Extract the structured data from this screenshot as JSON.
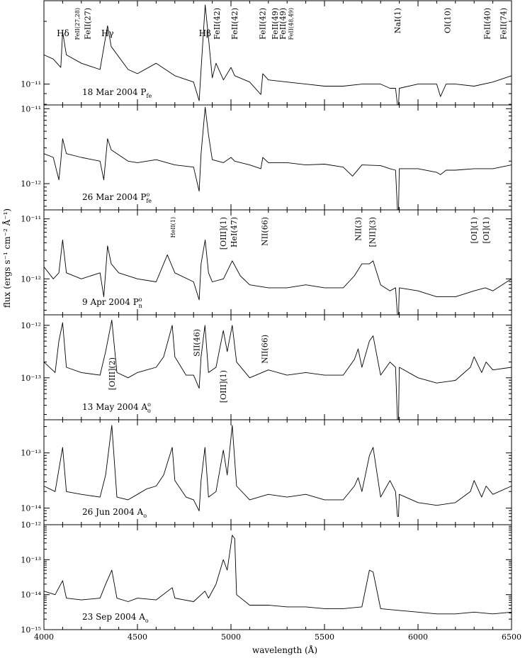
{
  "chart_data": {
    "type": "line",
    "xlabel": "wavelength (Å)",
    "ylabel": "flux (ergs s⁻¹ cm⁻² Å⁻¹)",
    "xlim": [
      4000,
      6500
    ],
    "x_ticks": [
      "4000",
      "4500",
      "5000",
      "5500",
      "6000",
      "6500"
    ],
    "log_y": true,
    "panels": [
      {
        "label": "18 Mar 2004 P",
        "label_sub": "fe",
        "label_sup": "",
        "ylim_log": [
          -11.1,
          -10.6
        ],
        "y_ticks": [
          {
            "v": -11,
            "t": "10⁻¹¹"
          }
        ],
        "series": [
          {
            "x": [
              4000,
              4050,
              4090,
              4100,
              4120,
              4200,
              4300,
              4340,
              4360,
              4450,
              4500,
              4600,
              4700,
              4800,
              4830,
              4840,
              4862,
              4880,
              4900,
              4920,
              4960,
              5000,
              5020,
              5100,
              5160,
              5170,
              5200,
              5300,
              5400,
              5500,
              5600,
              5700,
              5800,
              5850,
              5880,
              5890,
              5896,
              5900,
              6000,
              6100,
              6120,
              6150,
              6200,
              6300,
              6400,
              6500
            ],
            "y": [
              -10.86,
              -10.88,
              -10.92,
              -10.75,
              -10.86,
              -10.9,
              -10.93,
              -10.72,
              -10.82,
              -10.93,
              -10.95,
              -10.9,
              -10.96,
              -10.99,
              -11.08,
              -10.93,
              -10.62,
              -10.78,
              -10.97,
              -10.9,
              -10.98,
              -10.92,
              -10.96,
              -10.99,
              -11.05,
              -10.95,
              -10.98,
              -10.99,
              -11.0,
              -11.01,
              -11.01,
              -11.0,
              -11.0,
              -11.02,
              -11.02,
              -11.2,
              -11.2,
              -11.02,
              -11.0,
              -11.0,
              -11.06,
              -11.0,
              -11.0,
              -11.01,
              -10.99,
              -10.96
            ]
          }
        ],
        "annotations": [
          {
            "t": "Hδ",
            "x": 4102
          },
          {
            "t": "FeII(27,28)",
            "x": 4175
          },
          {
            "t": "FeII(27)",
            "x": 4233
          },
          {
            "t": "Hγ",
            "x": 4340
          },
          {
            "t": "Hβ",
            "x": 4861
          },
          {
            "t": "FeII(42)",
            "x": 4924
          },
          {
            "t": "FeII(42)",
            "x": 5018
          },
          {
            "t": "FeII(42)",
            "x": 5169
          },
          {
            "t": "FeII(49)",
            "x": 5235
          },
          {
            "t": "FeII(49)",
            "x": 5276
          },
          {
            "t": "FeII(48,49)",
            "x": 5316
          },
          {
            "t": "NaI(1)",
            "x": 5890
          },
          {
            "t": "OI(10)",
            "x": 6158
          },
          {
            "t": "FeII(40)",
            "x": 6370
          },
          {
            "t": "FeII(74)",
            "x": 6456
          }
        ]
      },
      {
        "label": "26 Mar 2004 P",
        "label_sub": "fe",
        "label_sup": "o",
        "ylim_log": [
          -12.35,
          -10.95
        ],
        "y_ticks": [
          {
            "v": -11,
            "t": "10⁻¹¹"
          },
          {
            "v": -12,
            "t": "10⁻¹²"
          }
        ],
        "series": [
          {
            "x": [
              4000,
              4050,
              4080,
              4090,
              4100,
              4120,
              4200,
              4300,
              4320,
              4340,
              4360,
              4450,
              4500,
              4600,
              4700,
              4800,
              4830,
              4840,
              4862,
              4880,
              4900,
              4960,
              5000,
              5020,
              5100,
              5160,
              5170,
              5200,
              5300,
              5400,
              5500,
              5600,
              5650,
              5700,
              5800,
              5850,
              5880,
              5890,
              5896,
              5900,
              6000,
              6100,
              6120,
              6150,
              6200,
              6300,
              6400,
              6500
            ],
            "y": [
              -11.6,
              -11.65,
              -11.95,
              -11.7,
              -11.4,
              -11.6,
              -11.65,
              -11.7,
              -11.95,
              -11.4,
              -11.55,
              -11.7,
              -11.72,
              -11.68,
              -11.75,
              -11.78,
              -12.1,
              -11.6,
              -10.98,
              -11.35,
              -11.68,
              -11.72,
              -11.65,
              -11.7,
              -11.75,
              -11.8,
              -11.65,
              -11.72,
              -11.72,
              -11.75,
              -11.74,
              -11.78,
              -11.9,
              -11.75,
              -11.76,
              -11.8,
              -11.82,
              -12.35,
              -12.35,
              -11.8,
              -11.8,
              -11.85,
              -11.88,
              -11.82,
              -11.82,
              -11.8,
              -11.8,
              -11.75
            ]
          }
        ],
        "annotations": []
      },
      {
        "label": "9 Apr 2004 P",
        "label_sub": "n",
        "label_sup": "o",
        "ylim_log": [
          -12.6,
          -10.85
        ],
        "y_ticks": [
          {
            "v": -11,
            "t": "10⁻¹¹"
          },
          {
            "v": -12,
            "t": "10⁻¹²"
          }
        ],
        "series": [
          {
            "x": [
              4000,
              4050,
              4080,
              4100,
              4120,
              4200,
              4300,
              4320,
              4340,
              4360,
              4400,
              4500,
              4600,
              4660,
              4700,
              4800,
              4830,
              4840,
              4862,
              4880,
              4900,
              4960,
              5007,
              5050,
              5100,
              5200,
              5300,
              5400,
              5500,
              5600,
              5660,
              5700,
              5740,
              5760,
              5800,
              5850,
              5880,
              5890,
              5896,
              5900,
              6000,
              6100,
              6200,
              6300,
              6360,
              6400,
              6500
            ],
            "y": [
              -11.8,
              -12.0,
              -11.9,
              -11.35,
              -11.9,
              -12.0,
              -11.9,
              -12.3,
              -11.45,
              -11.75,
              -11.9,
              -12.0,
              -12.05,
              -11.6,
              -11.9,
              -12.05,
              -12.35,
              -11.75,
              -11.35,
              -11.9,
              -12.05,
              -12.0,
              -11.7,
              -11.95,
              -12.1,
              -12.15,
              -12.15,
              -12.1,
              -12.15,
              -12.15,
              -11.95,
              -11.75,
              -11.75,
              -11.7,
              -12.1,
              -12.2,
              -12.15,
              -12.6,
              -12.6,
              -12.15,
              -12.2,
              -12.3,
              -12.3,
              -12.2,
              -12.15,
              -12.2,
              -12.0
            ]
          }
        ],
        "annotations": [
          {
            "t": "HeII(1)",
            "x": 4686
          },
          {
            "t": "[OIII](1)",
            "x": 4959
          },
          {
            "t": "HeI(47)",
            "x": 5016
          },
          {
            "t": "NII(66)",
            "x": 5180
          },
          {
            "t": "NII(3)",
            "x": 5679
          },
          {
            "t": "[NII](3)",
            "x": 5755
          },
          {
            "t": "[OI](1)",
            "x": 6300
          },
          {
            "t": "[OI](1)",
            "x": 6364
          }
        ]
      },
      {
        "label": "13 May 2004 A",
        "label_sub": "o",
        "label_sup": "o",
        "ylim_log": [
          -13.8,
          -11.8
        ],
        "y_ticks": [
          {
            "v": -12,
            "t": "10⁻¹²"
          },
          {
            "v": -13,
            "t": "10⁻¹³"
          }
        ],
        "series": [
          {
            "x": [
              4000,
              4060,
              4080,
              4100,
              4120,
              4200,
              4300,
              4330,
              4363,
              4390,
              4450,
              4500,
              4550,
              4600,
              4640,
              4686,
              4700,
              4760,
              4800,
              4830,
              4840,
              4861,
              4880,
              4920,
              4959,
              4980,
              5007,
              5030,
              5100,
              5200,
              5300,
              5400,
              5500,
              5600,
              5660,
              5680,
              5700,
              5740,
              5760,
              5800,
              5850,
              5880,
              5890,
              5896,
              5900,
              6000,
              6100,
              6200,
              6280,
              6300,
              6340,
              6364,
              6400,
              6500
            ],
            "y": [
              -12.7,
              -12.9,
              -12.3,
              -11.95,
              -12.8,
              -12.9,
              -12.95,
              -12.5,
              -11.9,
              -12.9,
              -13.0,
              -12.9,
              -12.85,
              -12.8,
              -12.6,
              -12.0,
              -12.6,
              -12.95,
              -12.95,
              -13.2,
              -12.6,
              -12.0,
              -12.9,
              -12.8,
              -12.1,
              -12.5,
              -12.0,
              -12.7,
              -13.0,
              -12.85,
              -12.95,
              -12.9,
              -12.95,
              -12.95,
              -12.65,
              -12.45,
              -12.8,
              -12.3,
              -12.2,
              -12.95,
              -12.7,
              -12.8,
              -13.8,
              -13.8,
              -12.8,
              -13.0,
              -13.1,
              -13.05,
              -12.8,
              -12.6,
              -12.9,
              -12.7,
              -12.85,
              -12.8
            ]
          }
        ],
        "annotations": [
          {
            "t": "[OIII](2)",
            "x": 4363
          },
          {
            "t": "SII(46)",
            "x": 4816
          },
          {
            "t": "[OIII](1)",
            "x": 4959
          },
          {
            "t": "NII(66)",
            "x": 5180
          }
        ]
      },
      {
        "label": "26 Jun 2004 A",
        "label_sub": "o",
        "label_sup": "",
        "ylim_log": [
          -14.3,
          -12.4
        ],
        "y_ticks": [
          {
            "v": -13,
            "t": "10⁻¹³"
          },
          {
            "v": -14,
            "t": "10⁻¹⁴"
          }
        ],
        "series": [
          {
            "x": [
              4000,
              4060,
              4080,
              4100,
              4120,
              4200,
              4300,
              4330,
              4363,
              4390,
              4450,
              4500,
              4550,
              4600,
              4640,
              4686,
              4700,
              4760,
              4800,
              4830,
              4840,
              4861,
              4880,
              4920,
              4959,
              4980,
              5007,
              5030,
              5100,
              5200,
              5300,
              5400,
              5500,
              5600,
              5660,
              5680,
              5700,
              5740,
              5760,
              5800,
              5850,
              5880,
              5890,
              5896,
              5900,
              6000,
              6100,
              6200,
              6280,
              6300,
              6340,
              6364,
              6400,
              6500
            ],
            "y": [
              -13.6,
              -13.7,
              -13.3,
              -12.9,
              -13.7,
              -13.75,
              -13.8,
              -13.4,
              -12.5,
              -13.8,
              -13.85,
              -13.75,
              -13.65,
              -13.6,
              -13.4,
              -12.9,
              -13.5,
              -13.8,
              -13.85,
              -14.05,
              -13.5,
              -12.9,
              -13.8,
              -13.7,
              -12.95,
              -13.4,
              -12.5,
              -13.6,
              -13.85,
              -13.75,
              -13.8,
              -13.75,
              -13.85,
              -13.85,
              -13.6,
              -13.45,
              -13.7,
              -13.05,
              -12.9,
              -13.8,
              -13.5,
              -13.7,
              -14.15,
              -14.15,
              -13.75,
              -13.9,
              -13.95,
              -13.9,
              -13.7,
              -13.5,
              -13.8,
              -13.6,
              -13.75,
              -13.6
            ]
          }
        ],
        "annotations": []
      },
      {
        "label": "23 Sep 2004 A",
        "label_sub": "o",
        "label_sup": "",
        "ylim_log": [
          -15.0,
          -12.0
        ],
        "y_ticks": [
          {
            "v": -12,
            "t": "10⁻¹²"
          },
          {
            "v": -13,
            "t": "10⁻¹³"
          },
          {
            "v": -14,
            "t": "10⁻¹⁴"
          },
          {
            "v": -15,
            "t": "10⁻¹⁵"
          }
        ],
        "series": [
          {
            "x": [
              4000,
              4060,
              4100,
              4120,
              4200,
              4300,
              4330,
              4363,
              4390,
              4450,
              4500,
              4600,
              4686,
              4700,
              4800,
              4861,
              4880,
              4920,
              4959,
              4980,
              5007,
              5020,
              5030,
              5100,
              5200,
              5300,
              5400,
              5500,
              5600,
              5700,
              5740,
              5760,
              5800,
              5900,
              6000,
              6100,
              6200,
              6300,
              6400,
              6500
            ],
            "y": [
              -13.9,
              -14.0,
              -13.6,
              -14.1,
              -14.15,
              -14.1,
              -13.7,
              -13.3,
              -14.1,
              -14.2,
              -14.1,
              -14.15,
              -13.8,
              -14.1,
              -14.2,
              -13.9,
              -14.1,
              -13.7,
              -13.0,
              -13.3,
              -12.3,
              -12.4,
              -14.0,
              -14.3,
              -14.3,
              -14.35,
              -14.35,
              -14.4,
              -14.4,
              -14.35,
              -13.3,
              -13.35,
              -14.4,
              -14.45,
              -14.5,
              -14.55,
              -14.55,
              -14.5,
              -14.55,
              -14.5
            ]
          }
        ],
        "annotations": []
      }
    ]
  }
}
